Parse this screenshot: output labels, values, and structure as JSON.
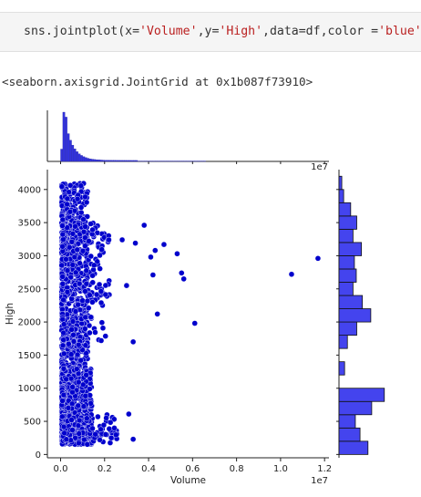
{
  "code_cell": {
    "code_parts": [
      {
        "text": "sns.jointplot(x=",
        "cls": "tok-name"
      },
      {
        "text": "'Volume'",
        "cls": "tok-str"
      },
      {
        "text": ",y=",
        "cls": "tok-name"
      },
      {
        "text": "'High'",
        "cls": "tok-str"
      },
      {
        "text": ",data=df,color =",
        "cls": "tok-name"
      },
      {
        "text": "'blue'",
        "cls": "tok-str"
      },
      {
        "text": ")",
        "cls": "tok-name"
      }
    ]
  },
  "output_text": "<seaborn.axisgrid.JointGrid at 0x1b087f73910>",
  "chart_data": {
    "type": "scatter",
    "xlabel": "Volume",
    "ylabel": "High",
    "x_offset_label": "1e7",
    "xlim": [
      -0.06,
      1.22
    ],
    "ylim": [
      -50,
      4300
    ],
    "x_ticks": [
      0.0,
      0.2,
      0.4,
      0.6,
      0.8,
      1.0,
      1.2
    ],
    "x_tick_labels": [
      "0.0",
      "0.2",
      "0.4",
      "0.6",
      "0.8",
      "1.0",
      "1.2"
    ],
    "y_ticks": [
      0,
      500,
      1000,
      1500,
      2000,
      2500,
      3000,
      3500,
      4000
    ],
    "y_tick_labels": [
      "0",
      "500",
      "1000",
      "1500",
      "2000",
      "2500",
      "3000",
      "3500",
      "4000"
    ],
    "color": "#0000cc",
    "outliers": [
      {
        "x": 1.17,
        "y": 2960
      },
      {
        "x": 1.05,
        "y": 2720
      },
      {
        "x": 0.61,
        "y": 1980
      },
      {
        "x": 0.55,
        "y": 2740
      },
      {
        "x": 0.56,
        "y": 2650
      },
      {
        "x": 0.53,
        "y": 3030
      },
      {
        "x": 0.47,
        "y": 3170
      },
      {
        "x": 0.44,
        "y": 2120
      },
      {
        "x": 0.43,
        "y": 3080
      },
      {
        "x": 0.38,
        "y": 3460
      },
      {
        "x": 0.42,
        "y": 2710
      },
      {
        "x": 0.41,
        "y": 2980
      },
      {
        "x": 0.34,
        "y": 3190
      },
      {
        "x": 0.33,
        "y": 1700
      },
      {
        "x": 0.31,
        "y": 610
      },
      {
        "x": 0.33,
        "y": 230
      },
      {
        "x": 0.3,
        "y": 2550
      },
      {
        "x": 0.28,
        "y": 3240
      }
    ],
    "marginal_y": {
      "bins_start": 0,
      "bin_width": 200,
      "counts": [
        0.62,
        0.45,
        0.35,
        0.7,
        0.97,
        0.0,
        0.12,
        0.0,
        0.18,
        0.38,
        0.68,
        0.5,
        0.3,
        0.37,
        0.33,
        0.48,
        0.3,
        0.38,
        0.25,
        0.1,
        0.06
      ]
    }
  }
}
